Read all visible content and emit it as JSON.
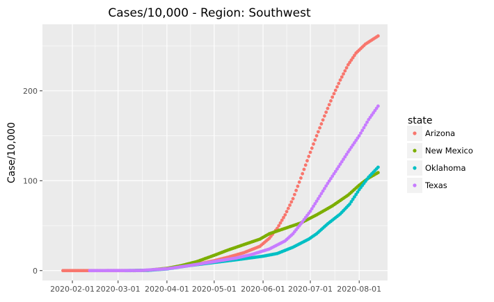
{
  "chart_data": {
    "type": "scatter",
    "title": "Cases/10,000 - Region: Southwest",
    "xlabel": "",
    "ylabel": "Case/10,000",
    "x_axis_type": "date",
    "xlim": [
      "2020-01-13",
      "2020-08-19"
    ],
    "ylim": [
      -11,
      274
    ],
    "x_ticks": [
      "2020-02-01",
      "2020-03-01",
      "2020-04-01",
      "2020-05-01",
      "2020-06-01",
      "2020-07-01",
      "2020-08-01"
    ],
    "y_ticks": [
      0,
      100,
      200
    ],
    "grid": true,
    "background": "#ebebeb",
    "legend": {
      "title": "state",
      "position": "right"
    },
    "series": [
      {
        "name": "Arizona",
        "color": "#f8766d",
        "start": "2020-01-26",
        "end": "2020-08-13",
        "points": [
          [
            "2020-01-26",
            0
          ],
          [
            "2020-03-10",
            0
          ],
          [
            "2020-03-20",
            0.3
          ],
          [
            "2020-04-01",
            2.5
          ],
          [
            "2020-04-10",
            4.5
          ],
          [
            "2020-04-20",
            7
          ],
          [
            "2020-05-01",
            11
          ],
          [
            "2020-05-10",
            15
          ],
          [
            "2020-05-20",
            20
          ],
          [
            "2020-05-30",
            27
          ],
          [
            "2020-06-05",
            36
          ],
          [
            "2020-06-10",
            47
          ],
          [
            "2020-06-15",
            62
          ],
          [
            "2020-06-20",
            80
          ],
          [
            "2020-06-25",
            103
          ],
          [
            "2020-06-30",
            127
          ],
          [
            "2020-07-05",
            150
          ],
          [
            "2020-07-10",
            172
          ],
          [
            "2020-07-15",
            193
          ],
          [
            "2020-07-20",
            212
          ],
          [
            "2020-07-25",
            229
          ],
          [
            "2020-07-30",
            242
          ],
          [
            "2020-08-05",
            252
          ],
          [
            "2020-08-13",
            261
          ]
        ]
      },
      {
        "name": "New Mexico",
        "color": "#7cae00",
        "start": "2020-03-11",
        "end": "2020-08-13",
        "points": [
          [
            "2020-03-11",
            0
          ],
          [
            "2020-03-20",
            0.4
          ],
          [
            "2020-04-01",
            2.5
          ],
          [
            "2020-04-10",
            5.5
          ],
          [
            "2020-04-20",
            10
          ],
          [
            "2020-05-01",
            17
          ],
          [
            "2020-05-10",
            23
          ],
          [
            "2020-05-20",
            29
          ],
          [
            "2020-05-30",
            35
          ],
          [
            "2020-06-05",
            41
          ],
          [
            "2020-06-15",
            47
          ],
          [
            "2020-06-25",
            53
          ],
          [
            "2020-07-05",
            62
          ],
          [
            "2020-07-15",
            72
          ],
          [
            "2020-07-25",
            84
          ],
          [
            "2020-08-01",
            95
          ],
          [
            "2020-08-07",
            103
          ],
          [
            "2020-08-13",
            109
          ]
        ]
      },
      {
        "name": "Oklahoma",
        "color": "#00bfc4",
        "start": "2020-03-06",
        "end": "2020-08-13",
        "points": [
          [
            "2020-03-06",
            0
          ],
          [
            "2020-03-20",
            0.3
          ],
          [
            "2020-04-01",
            1.8
          ],
          [
            "2020-04-15",
            5.5
          ],
          [
            "2020-05-01",
            9
          ],
          [
            "2020-05-15",
            12
          ],
          [
            "2020-06-01",
            16
          ],
          [
            "2020-06-10",
            19
          ],
          [
            "2020-06-20",
            26
          ],
          [
            "2020-06-30",
            35
          ],
          [
            "2020-07-05",
            41
          ],
          [
            "2020-07-12",
            52
          ],
          [
            "2020-07-20",
            63
          ],
          [
            "2020-07-26",
            74
          ],
          [
            "2020-08-01",
            90
          ],
          [
            "2020-08-07",
            104
          ],
          [
            "2020-08-13",
            115
          ]
        ]
      },
      {
        "name": "Texas",
        "color": "#c77cff",
        "start": "2020-02-12",
        "end": "2020-08-13",
        "points": [
          [
            "2020-02-12",
            0
          ],
          [
            "2020-03-15",
            0.1
          ],
          [
            "2020-04-01",
            2
          ],
          [
            "2020-04-15",
            5.5
          ],
          [
            "2020-05-01",
            10
          ],
          [
            "2020-05-15",
            14
          ],
          [
            "2020-05-25",
            18
          ],
          [
            "2020-06-05",
            24
          ],
          [
            "2020-06-15",
            33
          ],
          [
            "2020-06-20",
            41
          ],
          [
            "2020-06-25",
            52
          ],
          [
            "2020-07-01",
            66
          ],
          [
            "2020-07-06",
            80
          ],
          [
            "2020-07-12",
            97
          ],
          [
            "2020-07-18",
            113
          ],
          [
            "2020-07-25",
            132
          ],
          [
            "2020-08-01",
            150
          ],
          [
            "2020-08-07",
            168
          ],
          [
            "2020-08-13",
            183
          ]
        ]
      }
    ]
  }
}
